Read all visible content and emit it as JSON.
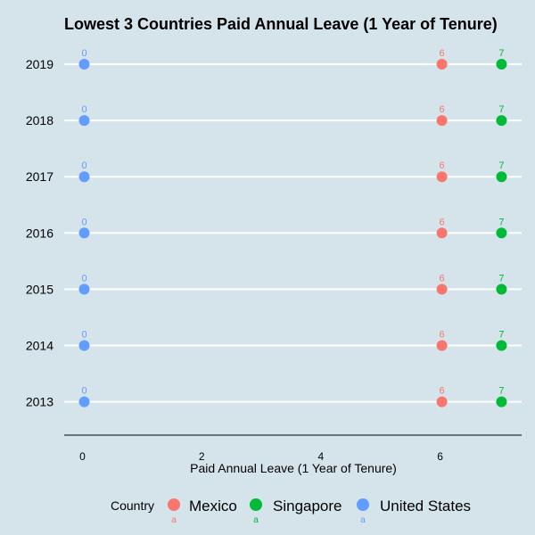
{
  "chart_data": {
    "type": "scatter",
    "title": "Lowest 3 Countries Paid Annual Leave (1 Year of Tenure)",
    "xlabel": "Paid Annual Leave (1 Year of Tenure)",
    "ylabel": "",
    "xlim": [
      -0.35,
      7.35
    ],
    "x_ticks": [
      "0",
      "2",
      "4",
      "6"
    ],
    "categories": [
      "2013",
      "2014",
      "2015",
      "2016",
      "2017",
      "2018",
      "2019"
    ],
    "legend_title": "Country",
    "legend_position": "bottom",
    "legend_key_text": "a",
    "grid": "horizontal major lines only",
    "series": [
      {
        "name": "Mexico",
        "color": "#f8766d",
        "values": [
          6,
          6,
          6,
          6,
          6,
          6,
          6
        ]
      },
      {
        "name": "Singapore",
        "color": "#00ba38",
        "values": [
          7,
          7,
          7,
          7,
          7,
          7,
          7
        ]
      },
      {
        "name": "United States",
        "color": "#619cff",
        "values": [
          0,
          0,
          0,
          0,
          0,
          0,
          0
        ]
      }
    ]
  }
}
